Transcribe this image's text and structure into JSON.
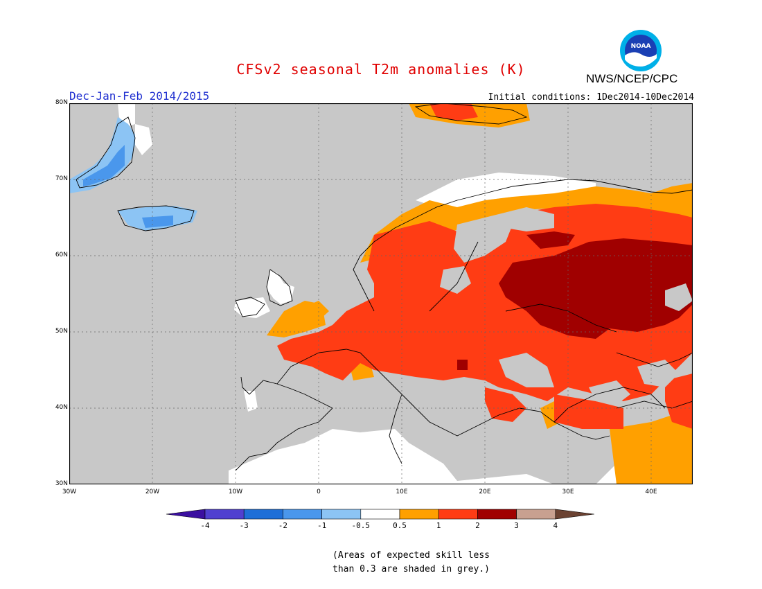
{
  "title": "CFSv2 seasonal T2m anomalies (K)",
  "period": "Dec-Jan-Feb 2014/2015",
  "initial_conditions": "Initial conditions: 1Dec2014-10Dec2014",
  "agency": "NWS/NCEP/CPC",
  "logo_text": "NOAA",
  "lat_labels": [
    "80N",
    "70N",
    "60N",
    "50N",
    "40N",
    "30N"
  ],
  "lon_labels": [
    "30W",
    "20W",
    "10W",
    "0",
    "10E",
    "20E",
    "30E",
    "40E"
  ],
  "colorbar": {
    "labels": [
      "-4",
      "-3",
      "-2",
      "-1",
      "-0.5",
      "0.5",
      "1",
      "2",
      "3",
      "4"
    ],
    "colors": [
      "#3b0fa0",
      "#5040d0",
      "#1e6fd8",
      "#4a97ec",
      "#8cc4f4",
      "#ffffff",
      "#ffa000",
      "#ff3c14",
      "#a00000",
      "#c8a090",
      "#6b4232"
    ]
  },
  "note_lines": [
    "(Areas of expected skill less",
    "than 0.3 are shaded in grey.)"
  ],
  "colors": {
    "skill_grey": "#c8c8c8",
    "title_red": "#e00000",
    "period_blue": "#2030d0"
  }
}
